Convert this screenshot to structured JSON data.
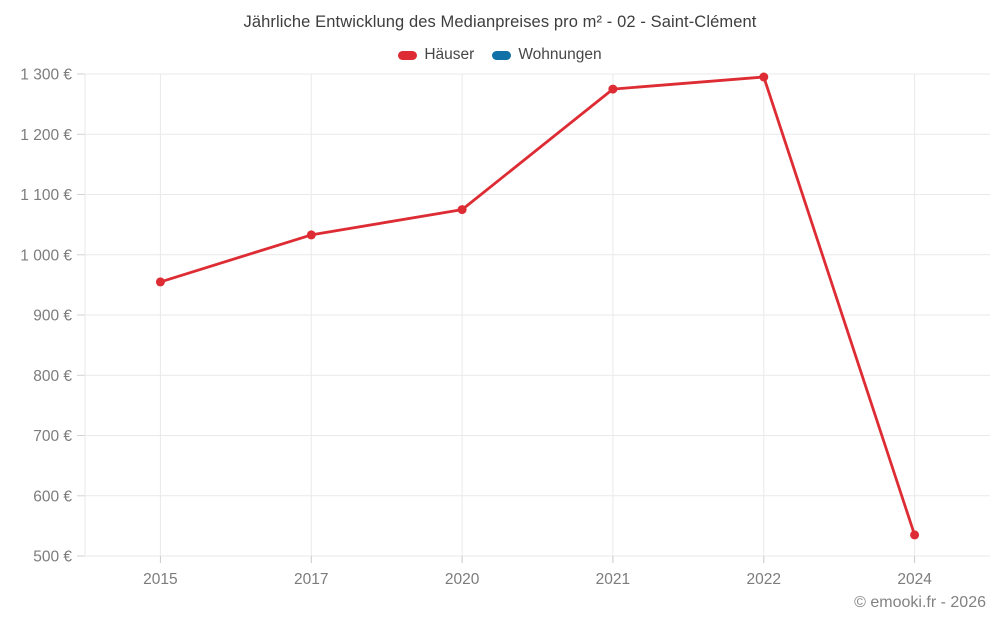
{
  "header": {
    "title": "Jährliche Entwicklung des Medianpreises pro m² - 02 - Saint-Clément"
  },
  "legend": {
    "items": [
      {
        "label": "Häuser",
        "color": "#dd2c33"
      },
      {
        "label": "Wohnungen",
        "color": "#1170a5"
      }
    ]
  },
  "footer": {
    "credit": "© emooki.fr - 2026"
  },
  "chart_data": {
    "type": "line",
    "title": "Jährliche Entwicklung des Medianpreises pro m² - 02 - Saint-Clément",
    "categories": [
      "2015",
      "2017",
      "2020",
      "2021",
      "2022",
      "2024"
    ],
    "series": [
      {
        "name": "Häuser",
        "color": "#dd2c33",
        "values": [
          955,
          1033,
          1075,
          1275,
          1295,
          535
        ]
      },
      {
        "name": "Wohnungen",
        "color": "#1170a5",
        "values": []
      }
    ],
    "xlabel": "",
    "ylabel": "€",
    "ylim": [
      500,
      1300
    ],
    "ytick_step": 100,
    "ytick_suffix": " €",
    "grid": true,
    "legend_position": "top",
    "marker": "circle"
  }
}
